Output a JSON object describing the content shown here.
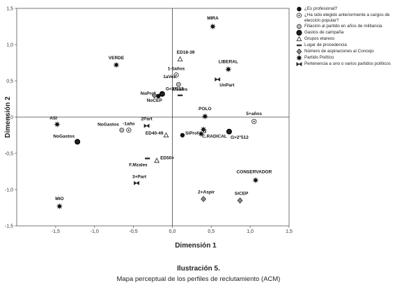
{
  "chart_data": {
    "type": "scatter",
    "xlabel": "Dimensión 1",
    "ylabel": "Dimensión 2",
    "xlim": [
      -2.0,
      1.5
    ],
    "ylim": [
      -1.5,
      1.5
    ],
    "xticks": [
      "-1,5",
      "-1,0",
      "-0,5",
      "0,0",
      "0,5",
      "1,0",
      "1,5"
    ],
    "xtick_values": [
      -1.5,
      -1.0,
      -0.5,
      0.0,
      0.5,
      1.0,
      1.5
    ],
    "yticks": [
      "-1,5",
      "-1,0",
      "-0,5",
      "0,0",
      "0,5",
      "1,0",
      "1,5"
    ],
    "ytick_values": [
      -1.5,
      -1.0,
      -0.5,
      0.0,
      0.5,
      1.0,
      1.5
    ],
    "grid": false,
    "legend_position": "right",
    "series": [
      {
        "name": "¿Es profesional?",
        "marker": "filled-circle",
        "points": [
          {
            "label": "NoProf",
            "x": -0.18,
            "y": 0.29
          },
          {
            "label": "SiProf",
            "x": 0.13,
            "y": -0.25
          }
        ]
      },
      {
        "name": "¿Ha sido elegido anteriormente a cargos de elección popular?",
        "marker": "circle-dot",
        "points": [
          {
            "label": "1-5años",
            "x": 0.05,
            "y": 0.58
          },
          {
            "label": "-1año",
            "x": -0.56,
            "y": -0.18
          },
          {
            "label": "5+años",
            "x": 1.05,
            "y": -0.06
          }
        ]
      },
      {
        "name": "Filiación al partido en años de militancia",
        "marker": "open-circle",
        "points": [
          {
            "label": "1aVez",
            "x": 0.08,
            "y": 0.45
          },
          {
            "label": "NoGastos",
            "x": -0.65,
            "y": -0.18
          }
        ]
      },
      {
        "name": "Gastos de campaña",
        "marker": "bold-circle",
        "points": [
          {
            "label": "G<2°512",
            "x": -0.13,
            "y": 0.32
          },
          {
            "label": "NoGastos",
            "x": -1.22,
            "y": -0.34
          },
          {
            "label": "G>2°512",
            "x": 0.73,
            "y": -0.2
          }
        ]
      },
      {
        "name": "Grupos etareos",
        "marker": "triangle",
        "points": [
          {
            "label": "ED18-39",
            "x": 0.1,
            "y": 0.8
          },
          {
            "label": "ED40-49",
            "x": -0.08,
            "y": -0.25
          },
          {
            "label": "ED50+",
            "x": -0.2,
            "y": -0.6
          }
        ]
      },
      {
        "name": "Lugar de procedencia",
        "marker": "bar",
        "points": [
          {
            "label": "Mzales",
            "x": 0.1,
            "y": 0.3
          },
          {
            "label": "F.Mzales",
            "x": -0.32,
            "y": -0.57
          }
        ]
      },
      {
        "name": "Número de aspiraciones al Concejo",
        "marker": "diamond",
        "points": [
          {
            "label": "NoCEP",
            "x": -0.23,
            "y": 0.3
          },
          {
            "label": "SiCEP",
            "x": 0.87,
            "y": -1.15
          },
          {
            "label": "2+Aspir",
            "x": 0.4,
            "y": -1.13
          }
        ]
      },
      {
        "name": "Partido Político",
        "marker": "star",
        "points": [
          {
            "label": "MIRA",
            "x": 0.52,
            "y": 1.25
          },
          {
            "label": "VERDE",
            "x": -0.72,
            "y": 0.72
          },
          {
            "label": "LIBERAL",
            "x": 0.72,
            "y": 0.66
          },
          {
            "label": "POLO",
            "x": 0.42,
            "y": 0.01
          },
          {
            "label": "ASI",
            "x": -1.48,
            "y": -0.1
          },
          {
            "label": "U",
            "x": 0.37,
            "y": -0.23
          },
          {
            "label": "C.RADICAL",
            "x": 0.4,
            "y": -0.17
          },
          {
            "label": "CONSERVADOR",
            "x": 1.07,
            "y": -0.87
          },
          {
            "label": "MIO",
            "x": -1.45,
            "y": -1.23
          }
        ]
      },
      {
        "name": "Pertenencia a uno o varios partidos políticos",
        "marker": "bowtie",
        "points": [
          {
            "label": "UnPart",
            "x": 0.58,
            "y": 0.52
          },
          {
            "label": "2Part",
            "x": -0.33,
            "y": -0.12
          },
          {
            "label": "3+Part",
            "x": -0.46,
            "y": -0.91
          }
        ]
      }
    ]
  },
  "caption": {
    "title": "Ilustración 5.",
    "subtitle": "Mapa perceptual de los perfiles de reclutamiento (ACM)"
  }
}
